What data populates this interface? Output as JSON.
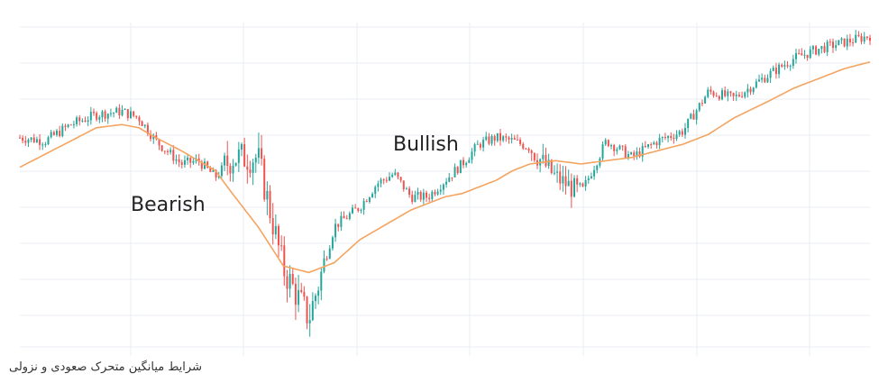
{
  "caption": "شرایط میانگین متحرک صعودی و نزولی",
  "chart_data": {
    "type": "line",
    "title": "",
    "xlabel": "",
    "ylabel": "",
    "grid": true,
    "legend": "none",
    "annotations": [
      "Bearish",
      "Bullish"
    ],
    "colors": {
      "up_candle": "#26a69a",
      "down_candle": "#ef5350",
      "moving_average": "#f4a460",
      "grid": "#e9eef3"
    },
    "ylim": [
      0,
      100
    ],
    "series": [
      {
        "kind": "price",
        "x": [
          0,
          3,
          6,
          9,
          12,
          14,
          16,
          19,
          21,
          23,
          25,
          28,
          31,
          34,
          37,
          40,
          42,
          44,
          46,
          48,
          50,
          52,
          54,
          56,
          58,
          60,
          63,
          66,
          69,
          72,
          75,
          78,
          81,
          84,
          88,
          91,
          94,
          97,
          100
        ],
        "values": [
          65,
          64,
          69,
          72,
          73,
          71,
          64,
          57,
          58,
          53,
          59,
          59,
          25,
          10,
          38,
          44,
          51,
          54,
          47,
          47,
          52,
          57,
          63,
          65,
          64,
          62,
          53,
          48,
          64,
          59,
          64,
          67,
          79,
          77,
          84,
          89,
          92,
          94,
          96
        ]
      },
      {
        "kind": "moving-average",
        "x": [
          0,
          3,
          6,
          9,
          12,
          14,
          16,
          19,
          21,
          23,
          25,
          28,
          31,
          34,
          37,
          40,
          42,
          44,
          46,
          48,
          50,
          52,
          54,
          56,
          58,
          60,
          63,
          66,
          69,
          72,
          75,
          78,
          81,
          84,
          88,
          91,
          94,
          97,
          100
        ],
        "values": [
          56,
          60,
          64,
          68,
          69,
          68,
          65,
          61,
          58,
          55,
          48,
          38,
          26,
          24,
          27,
          34,
          37,
          40,
          43,
          45,
          47,
          48,
          50,
          52,
          55,
          57,
          58,
          57,
          58,
          59,
          61,
          63,
          66,
          71,
          76,
          80,
          83,
          86,
          88
        ]
      }
    ],
    "candles_per_day": 3
  }
}
